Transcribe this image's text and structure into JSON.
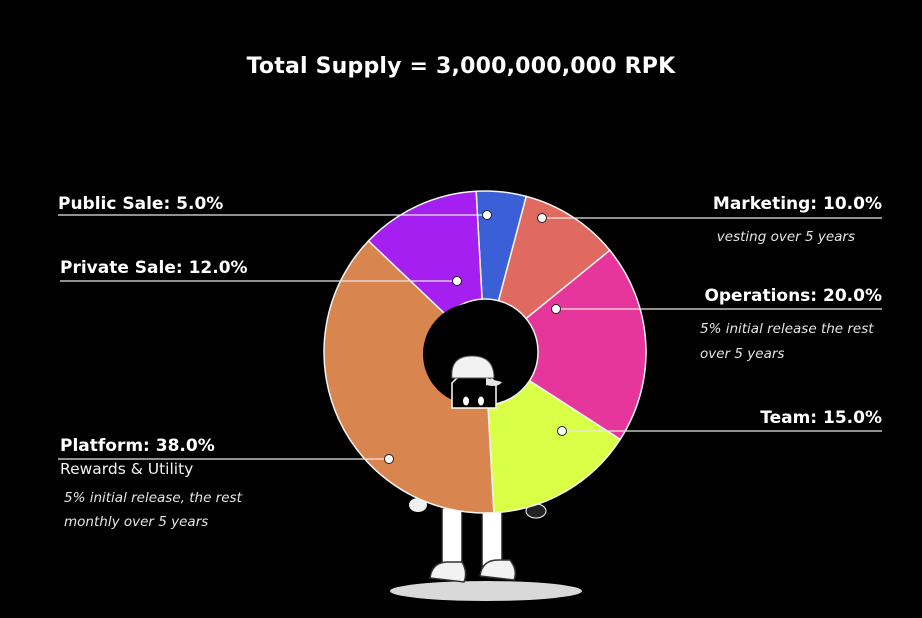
{
  "chart_data": {
    "type": "pie",
    "title": "Total Supply = 3,000,000,000 RPK",
    "slices": [
      {
        "label": "Public Sale: 5.0%",
        "value": 5.0,
        "color": "#3a5fd6"
      },
      {
        "label": "Marketing: 10.0%",
        "value": 10.0,
        "color": "#e06a60",
        "note": "vesting over 5 years"
      },
      {
        "label": "Operations: 20.0%",
        "value": 20.0,
        "color": "#e6369b",
        "note": "5% initial release the rest over 5 years"
      },
      {
        "label": "Team: 15.0%",
        "value": 15.0,
        "color": "#d9ff47"
      },
      {
        "label": "Platform: 38.0%",
        "value": 38.0,
        "color": "#d98550",
        "sub": "Rewards & Utility",
        "note": "5% initial release, the rest monthly over 5 years"
      },
      {
        "label": "Private Sale: 12.0%",
        "value": 12.0,
        "color": "#a41ff0"
      }
    ]
  },
  "labels": {
    "public_sale": "Public Sale: 5.0%",
    "private_sale": "Private Sale: 12.0%",
    "marketing": "Marketing: 10.0%",
    "marketing_note": "vesting over 5 years",
    "operations": "Operations: 20.0%",
    "operations_note_1": "5% initial release the rest",
    "operations_note_2": "over 5 years",
    "team": "Team: 15.0%",
    "platform": "Platform: 38.0%",
    "platform_sub": "Rewards & Utility",
    "platform_note_1": "5% initial release, the rest",
    "platform_note_2": "monthly over 5 years"
  }
}
